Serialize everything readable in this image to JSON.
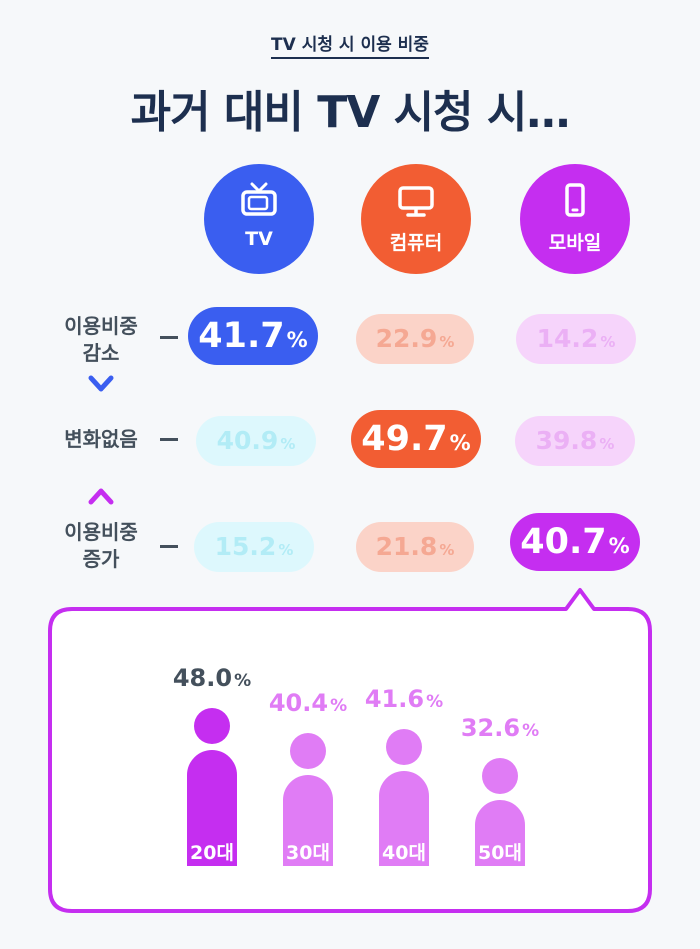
{
  "header": {
    "subtitle": "TV 시청 시 이용 비중",
    "title": "과거 대비 TV 시청 시…"
  },
  "colors": {
    "navy": "#1d2f4f",
    "tv": "#3a5ef0",
    "computer": "#f25d33",
    "mobile": "#c52ef0"
  },
  "devices": [
    {
      "label": "TV",
      "icon": "tv-icon"
    },
    {
      "label": "컴퓨터",
      "icon": "monitor-icon"
    },
    {
      "label": "모바일",
      "icon": "smartphone-icon"
    }
  ],
  "rows": [
    {
      "label_line1": "이용비중",
      "label_line2": "감소",
      "values": [
        "41.7",
        "22.9",
        "14.2"
      ],
      "highlight": 0
    },
    {
      "label_line1": "변화없음",
      "label_line2": "",
      "values": [
        "40.9",
        "49.7",
        "39.8"
      ],
      "highlight": 1
    },
    {
      "label_line1": "이용비중",
      "label_line2": "증가",
      "values": [
        "15.2",
        "21.8",
        "40.7"
      ],
      "highlight": 2
    }
  ],
  "percent_sign": "%",
  "chart_data": {
    "type": "bar",
    "categories": [
      "20대",
      "30대",
      "40대",
      "50대"
    ],
    "values": [
      48.0,
      40.4,
      41.6,
      32.6
    ],
    "value_labels": [
      "48.0",
      "40.4",
      "41.6",
      "32.6"
    ],
    "unit": "%",
    "highlight_index": 0,
    "colors": {
      "highlight": "#c52ef0",
      "normal": "#e07cf5",
      "highlight_label": "#44505c"
    }
  }
}
